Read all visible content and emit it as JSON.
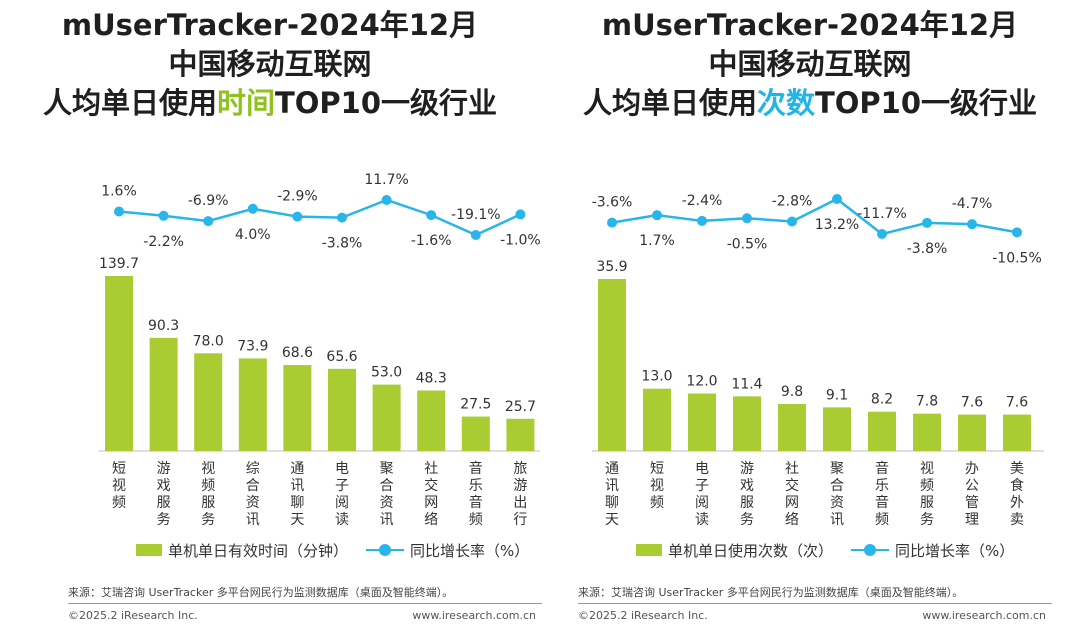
{
  "left": {
    "title_line1": "mUserTracker-2024年12月",
    "title_line2": "中国移动互联网",
    "title_line3_pre": "人均单日使用",
    "title_line3_hl": "时间",
    "title_line3_post": "TOP10一级行业",
    "legend_bar": "单机单日有效时间（分钟）",
    "legend_line": "同比增长率（%）",
    "source": "来源：艾瑞咨询 UserTracker 多平台网民行为监测数据库（桌面及智能终端）。",
    "copyright": "©2025.2 iResearch Inc.",
    "website": "www.iresearch.com.cn",
    "colors": {
      "bar": "#a8cc32",
      "line": "#27b5ea",
      "highlight": "#8dc21f"
    }
  },
  "right": {
    "title_line1": "mUserTracker-2024年12月",
    "title_line2": "中国移动互联网",
    "title_line3_pre": "人均单日使用",
    "title_line3_hl": "次数",
    "title_line3_post": "TOP10一级行业",
    "legend_bar": "单机单日使用次数（次）",
    "legend_line": "同比增长率（%）",
    "source": "来源：艾瑞咨询 UserTracker 多平台网民行为监测数据库（桌面及智能终端）。",
    "copyright": "©2025.2 iResearch Inc.",
    "website": "www.iresearch.com.cn",
    "colors": {
      "bar": "#a8cc32",
      "line": "#27b5ea",
      "highlight": "#1fb5e8"
    }
  },
  "chart_data": [
    {
      "type": "bar",
      "title": "mUserTracker-2024年12月 中国移动互联网 人均单日使用时间TOP10一级行业",
      "categories": [
        "短视频",
        "游戏服务",
        "视频服务",
        "综合资讯",
        "通讯聊天",
        "电子阅读",
        "聚合资讯",
        "社交网络",
        "音乐音频",
        "旅游出行"
      ],
      "series": [
        {
          "name": "单机单日有效时间（分钟）",
          "type": "bar",
          "values": [
            139.7,
            90.3,
            78.0,
            73.9,
            68.6,
            65.6,
            53.0,
            48.3,
            27.5,
            25.7
          ],
          "labels": [
            "139.7",
            "90.3",
            "78.0",
            "73.9",
            "68.6",
            "65.6",
            "53.0",
            "48.3",
            "27.5",
            "25.7"
          ]
        },
        {
          "name": "同比增长率（%）",
          "type": "line",
          "values": [
            1.6,
            -2.2,
            -6.9,
            4.0,
            -2.9,
            -3.8,
            11.7,
            -1.6,
            -19.1,
            -1.0
          ],
          "labels": [
            "1.6%",
            "-2.2%",
            "-6.9%",
            "4.0%",
            "-2.9%",
            "-3.8%",
            "11.7%",
            "-1.6%",
            "-19.1%",
            "-1.0%"
          ],
          "label_pos": [
            "above",
            "below",
            "above",
            "below",
            "above",
            "below",
            "above",
            "below",
            "above",
            "below"
          ]
        }
      ],
      "legend_position": "bottom",
      "grid": false
    },
    {
      "type": "bar",
      "title": "mUserTracker-2024年12月 中国移动互联网 人均单日使用次数TOP10一级行业",
      "categories": [
        "通讯聊天",
        "短视频",
        "电子阅读",
        "游戏服务",
        "社交网络",
        "聚合资讯",
        "音乐音频",
        "视频服务",
        "办公管理",
        "美食外卖"
      ],
      "series": [
        {
          "name": "单机单日使用次数（次）",
          "type": "bar",
          "values": [
            35.9,
            13.0,
            12.0,
            11.4,
            9.8,
            9.1,
            8.2,
            7.8,
            7.6,
            7.6
          ],
          "labels": [
            "35.9",
            "13.0",
            "12.0",
            "11.4",
            "9.8",
            "9.1",
            "8.2",
            "7.8",
            "7.6",
            "7.6"
          ]
        },
        {
          "name": "同比增长率（%）",
          "type": "line",
          "values": [
            -3.6,
            1.7,
            -2.4,
            -0.5,
            -2.8,
            13.2,
            -11.7,
            -3.8,
            -4.7,
            -10.5
          ],
          "labels": [
            "-3.6%",
            "1.7%",
            "-2.4%",
            "-0.5%",
            "-2.8%",
            "13.2%",
            "-11.7%",
            "-3.8%",
            "-4.7%",
            "-10.5%"
          ],
          "label_pos": [
            "above",
            "below",
            "above",
            "below",
            "above",
            "below",
            "above",
            "below",
            "above",
            "below"
          ]
        }
      ],
      "legend_position": "bottom",
      "grid": false
    }
  ]
}
